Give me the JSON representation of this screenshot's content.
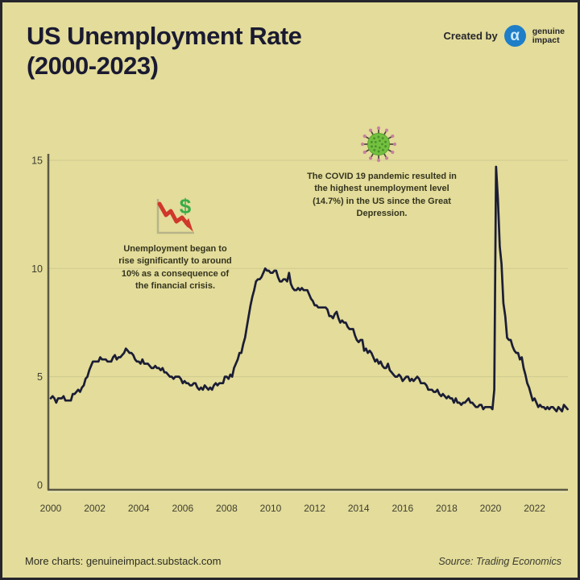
{
  "page": {
    "background": "#e3dc9a",
    "border_color": "#26262c"
  },
  "header": {
    "title_line1": "US Unemployment Rate",
    "title_line2": "(2000-2023)",
    "created_by_label": "Created by",
    "brand": {
      "logo_glyph": "α",
      "logo_color": "#1e7ec8",
      "name_line1": "genuine",
      "name_line2": "impact"
    }
  },
  "annotations": {
    "financial_crisis": {
      "icon": "declining-chart-dollar-icon",
      "lines": [
        "Unemployment began to",
        "rise significantly to around",
        "10% as a consequence of",
        "the financial crisis."
      ]
    },
    "covid": {
      "icon": "covid-virus-icon",
      "lines": [
        "The COVID 19 pandemic resulted in",
        "the highest unemployment level",
        "(14.7%) in the US since the Great",
        "Depression."
      ]
    }
  },
  "chart_data": {
    "type": "line",
    "title": "US Unemployment Rate (2000-2023)",
    "series_name": "US unemployment rate (%)",
    "x_start_year": 2000,
    "x_interval": "monthly",
    "xlim": [
      2000,
      2023.6
    ],
    "ylim": [
      0,
      15.3
    ],
    "grid": "horizontal-only",
    "legend": "none",
    "line_color": "#1b1d35",
    "grid_color": "#cfca92",
    "axis_color": "#5c5a44",
    "tick_color": "#3f3e30",
    "x_ticks": [
      2000,
      2002,
      2004,
      2006,
      2008,
      2010,
      2012,
      2014,
      2016,
      2018,
      2020,
      2022
    ],
    "y_ticks": [
      0,
      5,
      10,
      15
    ],
    "peak_value_annotated": 14.7,
    "values": [
      4.0,
      4.1,
      4.0,
      3.8,
      4.0,
      4.0,
      4.0,
      4.1,
      3.9,
      3.9,
      3.9,
      3.9,
      4.2,
      4.2,
      4.3,
      4.4,
      4.3,
      4.5,
      4.6,
      4.9,
      5.0,
      5.3,
      5.5,
      5.7,
      5.7,
      5.7,
      5.7,
      5.9,
      5.8,
      5.8,
      5.8,
      5.7,
      5.7,
      5.7,
      5.9,
      6.0,
      5.8,
      5.9,
      5.9,
      6.0,
      6.1,
      6.3,
      6.2,
      6.1,
      6.1,
      6.0,
      5.8,
      5.7,
      5.7,
      5.6,
      5.8,
      5.6,
      5.6,
      5.6,
      5.5,
      5.4,
      5.4,
      5.5,
      5.4,
      5.4,
      5.3,
      5.4,
      5.2,
      5.2,
      5.1,
      5.0,
      5.0,
      4.9,
      5.0,
      5.0,
      5.0,
      4.9,
      4.7,
      4.8,
      4.7,
      4.7,
      4.6,
      4.6,
      4.7,
      4.7,
      4.5,
      4.4,
      4.5,
      4.4,
      4.6,
      4.5,
      4.4,
      4.5,
      4.4,
      4.6,
      4.7,
      4.6,
      4.7,
      4.7,
      4.7,
      5.0,
      5.0,
      4.9,
      5.1,
      5.0,
      5.4,
      5.6,
      5.8,
      6.1,
      6.1,
      6.5,
      6.8,
      7.3,
      7.8,
      8.3,
      8.7,
      9.0,
      9.4,
      9.5,
      9.5,
      9.6,
      9.8,
      10.0,
      9.9,
      9.9,
      9.8,
      9.8,
      9.9,
      9.9,
      9.6,
      9.4,
      9.4,
      9.5,
      9.5,
      9.4,
      9.8,
      9.3,
      9.1,
      9.0,
      9.0,
      9.1,
      9.0,
      9.1,
      9.0,
      9.0,
      9.0,
      8.8,
      8.6,
      8.5,
      8.3,
      8.3,
      8.2,
      8.2,
      8.2,
      8.2,
      8.2,
      8.1,
      7.8,
      7.8,
      7.7,
      7.9,
      8.0,
      7.7,
      7.5,
      7.6,
      7.5,
      7.5,
      7.3,
      7.2,
      7.2,
      7.2,
      6.9,
      6.7,
      6.6,
      6.7,
      6.7,
      6.2,
      6.3,
      6.1,
      6.2,
      6.1,
      5.9,
      5.7,
      5.8,
      5.6,
      5.7,
      5.5,
      5.4,
      5.4,
      5.6,
      5.3,
      5.2,
      5.1,
      5.0,
      5.0,
      5.1,
      5.0,
      4.8,
      4.9,
      5.0,
      5.0,
      4.8,
      4.9,
      4.8,
      4.9,
      5.0,
      4.9,
      4.7,
      4.7,
      4.7,
      4.6,
      4.4,
      4.4,
      4.4,
      4.3,
      4.3,
      4.4,
      4.2,
      4.1,
      4.2,
      4.1,
      4.0,
      4.1,
      4.0,
      4.0,
      3.8,
      4.0,
      3.8,
      3.8,
      3.7,
      3.8,
      3.8,
      3.9,
      4.0,
      3.8,
      3.8,
      3.7,
      3.6,
      3.6,
      3.7,
      3.7,
      3.5,
      3.6,
      3.6,
      3.6,
      3.6,
      3.5,
      4.4,
      14.7,
      13.2,
      11.0,
      10.2,
      8.4,
      7.8,
      6.8,
      6.7,
      6.7,
      6.4,
      6.2,
      6.1,
      6.1,
      5.8,
      5.9,
      5.4,
      5.1,
      4.7,
      4.5,
      4.2,
      3.9,
      4.0,
      3.8,
      3.6,
      3.7,
      3.6,
      3.6,
      3.5,
      3.6,
      3.5,
      3.6,
      3.6,
      3.5,
      3.4,
      3.6,
      3.5,
      3.4,
      3.7,
      3.6,
      3.5
    ]
  },
  "footer": {
    "more_charts": "More charts: genuineimpact.substack.com",
    "source": "Source: Trading Economics"
  }
}
